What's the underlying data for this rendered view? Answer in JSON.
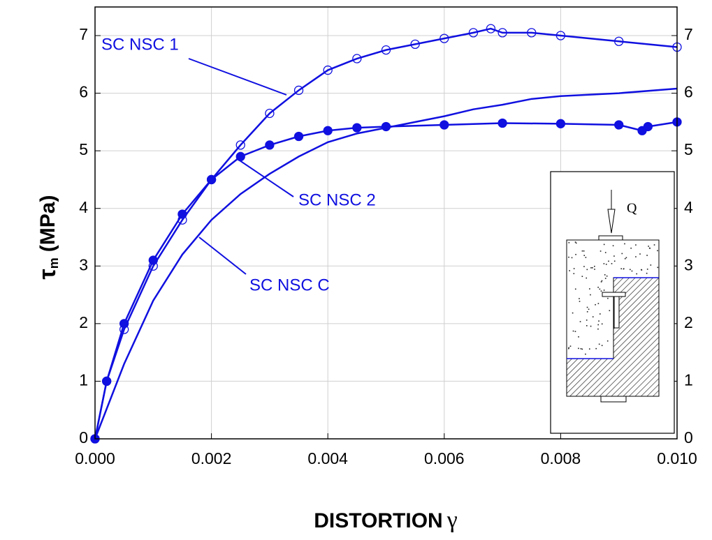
{
  "chart_data": {
    "type": "line",
    "x_label": {
      "text": "DISTORTION",
      "symbol": "γ"
    },
    "y_label": {
      "symbol": "τ",
      "subscript": "m",
      "unit": "(MPa)"
    },
    "xlim": [
      0,
      0.01
    ],
    "xticks": [
      {
        "value": 0,
        "label": "0.000"
      },
      {
        "value": 0.002,
        "label": "0.002"
      },
      {
        "value": 0.004,
        "label": "0.004"
      },
      {
        "value": 0.006,
        "label": "0.006"
      },
      {
        "value": 0.008,
        "label": "0.008"
      },
      {
        "value": 0.01,
        "label": "0.010"
      }
    ],
    "ylim": [
      0,
      7
    ],
    "yticks": [
      0,
      1,
      2,
      3,
      4,
      5,
      6,
      7
    ],
    "grid": true,
    "series": [
      {
        "name": "SC NSC 1",
        "color": "#1010e0",
        "marker": "open",
        "x": [
          0,
          0.0002,
          0.0005,
          0.001,
          0.0015,
          0.002,
          0.0025,
          0.003,
          0.0035,
          0.004,
          0.0045,
          0.005,
          0.0055,
          0.006,
          0.0065,
          0.0068,
          0.007,
          0.0075,
          0.008,
          0.009,
          0.01
        ],
        "values": [
          0,
          1.0,
          1.9,
          3.0,
          3.8,
          4.5,
          5.1,
          5.65,
          6.05,
          6.4,
          6.6,
          6.75,
          6.85,
          6.95,
          7.05,
          7.12,
          7.05,
          7.05,
          7.0,
          6.9,
          6.8
        ]
      },
      {
        "name": "SC NSC 2",
        "color": "#1010e0",
        "marker": "filled",
        "x": [
          0,
          0.0002,
          0.0005,
          0.001,
          0.0015,
          0.002,
          0.0025,
          0.003,
          0.0035,
          0.004,
          0.0045,
          0.005,
          0.006,
          0.007,
          0.008,
          0.009,
          0.0094,
          0.0095,
          0.01
        ],
        "values": [
          0,
          1.0,
          2.0,
          3.1,
          3.9,
          4.5,
          4.9,
          5.1,
          5.25,
          5.35,
          5.4,
          5.42,
          5.45,
          5.48,
          5.47,
          5.45,
          5.35,
          5.42,
          5.5
        ]
      },
      {
        "name": "SC NSC C",
        "color": "#1010e0",
        "marker": "none",
        "x": [
          0,
          0.0005,
          0.001,
          0.0015,
          0.002,
          0.0025,
          0.003,
          0.0035,
          0.004,
          0.0045,
          0.005,
          0.0055,
          0.006,
          0.0065,
          0.007,
          0.0075,
          0.008,
          0.009,
          0.01
        ],
        "values": [
          0,
          1.3,
          2.4,
          3.2,
          3.8,
          4.25,
          4.6,
          4.9,
          5.15,
          5.3,
          5.4,
          5.5,
          5.6,
          5.72,
          5.8,
          5.9,
          5.95,
          6.0,
          6.08
        ]
      }
    ],
    "inset_label": "Q"
  }
}
